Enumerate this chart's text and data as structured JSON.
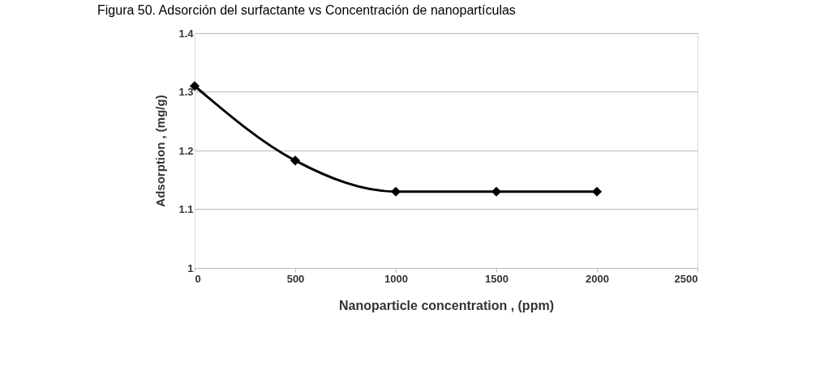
{
  "chart_data": {
    "type": "line",
    "title": "Figura 50. Adsorción del surfactante vs Concentración de nanopartículas",
    "xlabel": "Nanoparticle concentration , (ppm)",
    "ylabel": "Adsorption , (mg/g)",
    "x": [
      0,
      500,
      1000,
      1500,
      2000
    ],
    "series": [
      {
        "color": "#000000",
        "values": [
          1.31,
          1.183,
          1.13,
          1.13,
          1.13
        ]
      }
    ],
    "xlim": [
      0,
      2500
    ],
    "xticks": [
      0,
      500,
      1000,
      1500,
      2000,
      2500
    ],
    "ylim": [
      1,
      1.4
    ],
    "yticks": [
      1,
      1.1,
      1.2,
      1.3,
      1.4
    ],
    "grid": "y",
    "marker": "diamond",
    "line_style": "solid"
  }
}
